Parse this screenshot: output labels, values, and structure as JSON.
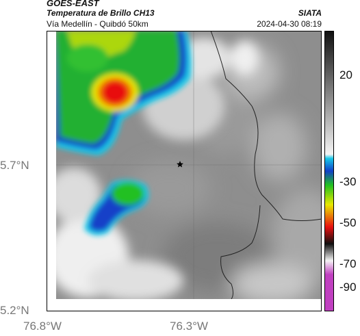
{
  "header": {
    "title": "GOES-EAST",
    "subtitle": "Temperatura de Brillo CH13",
    "route": "Vía Medellín - Quibdó 50km",
    "organization": "SIATA",
    "datetime": "2024-04-30 08:19"
  },
  "map": {
    "lat_ticks": [
      "5.7°N",
      "5.2°N"
    ],
    "lon_ticks": [
      "76.8°W",
      "76.3°W"
    ],
    "marker": "star-icon"
  },
  "colorbar": {
    "ticks": [
      "20",
      "-30",
      "-50",
      "-70",
      "-90"
    ],
    "colors": {
      "warm_gray": "#8c8c8c",
      "cold_white": "#f2f2f2",
      "cyan": "#18c8e8",
      "blue": "#1240c8",
      "green": "#20c020",
      "yellow": "#e8e800",
      "red": "#e81010",
      "black": "#101010",
      "magenta": "#c040c0"
    }
  }
}
